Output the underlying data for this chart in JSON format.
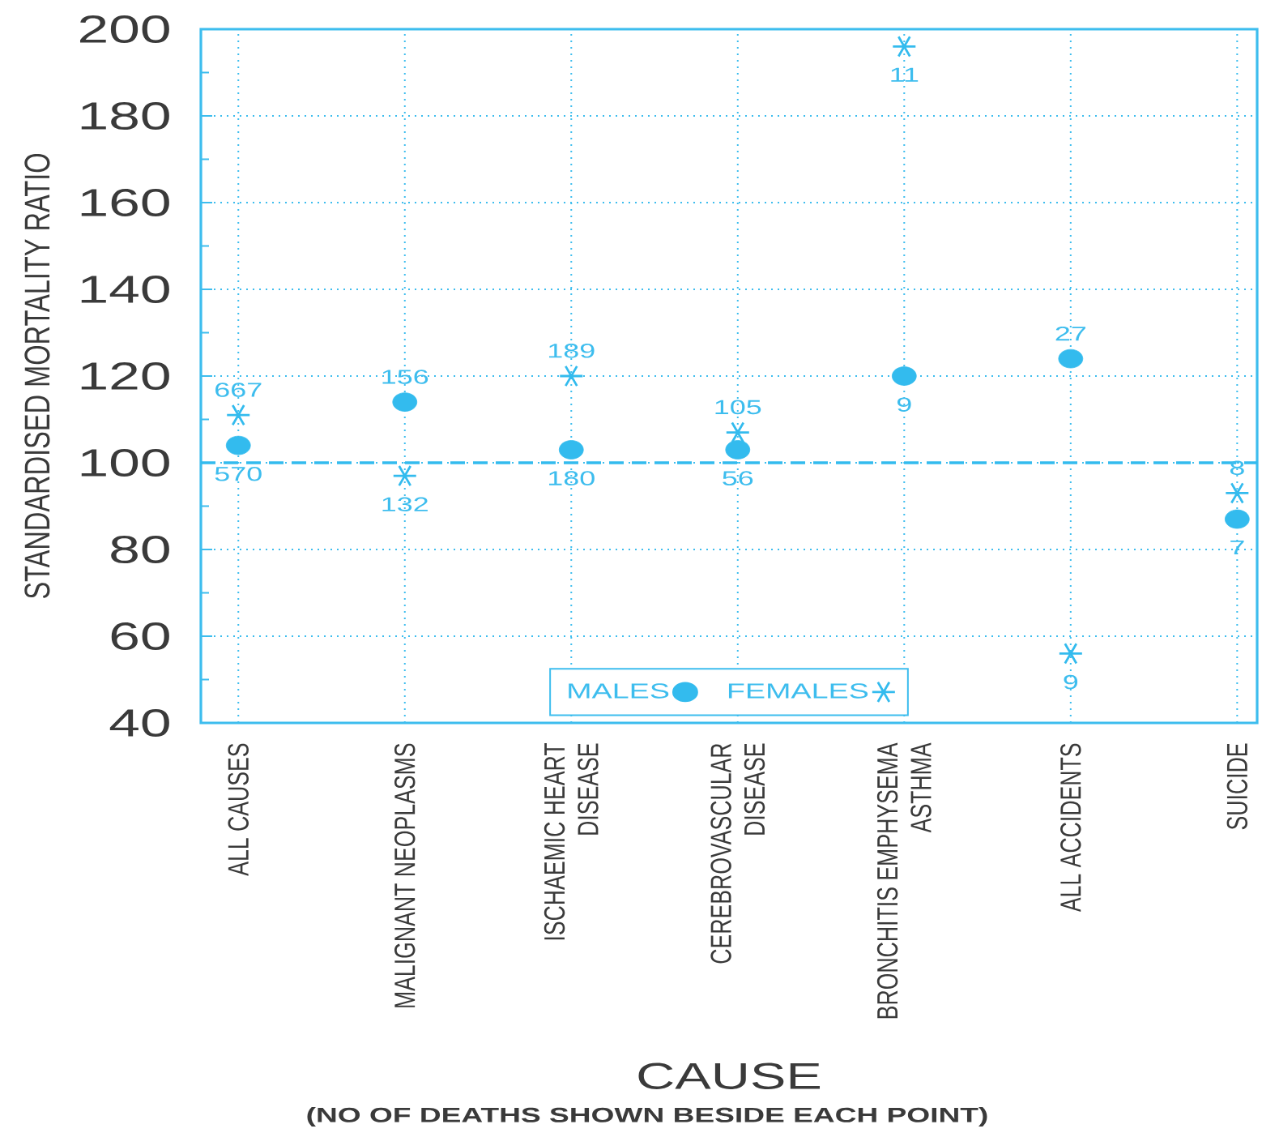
{
  "chart_data": {
    "type": "scatter",
    "categories": [
      "ALL CAUSES",
      "MALIGNANT NEOPLASMS",
      "ISCHAEMIC HEART DISEASE",
      "CEREBROVASCULAR DISEASE",
      "BRONCHITIS EMPHYSEMA ASTHMA",
      "ALL ACCIDENTS",
      "SUICIDE"
    ],
    "series": [
      {
        "name": "MALES",
        "color": "#33bbee",
        "marker": "circle",
        "values": [
          104,
          114,
          103,
          103,
          120,
          124,
          87
        ]
      },
      {
        "name": "FEMALES",
        "color": "#33bbee",
        "marker": "cross",
        "values": [
          111,
          97,
          120,
          107,
          196,
          56,
          93
        ]
      }
    ],
    "xlabel": "CAUSE",
    "ylabel": "STANDARDISED MORTALITY RATIO",
    "annotations": [
      "(NO OF DEATHS SHOWN BESIDE EACH POINT)",
      {
        "text": "570",
        "x": "ALL CAUSES",
        "y": 104
      },
      {
        "text": "156",
        "x": "MALIGNANT NEOPLASMS",
        "y": 114
      },
      {
        "text": "180",
        "x": "ISCHAEMIC HEART DISEASE",
        "y": 103
      },
      {
        "text": "56",
        "x": "CEREBROVASCULAR DISEASE",
        "y": 103
      },
      {
        "text": "9",
        "x": "BRONCHITIS EMPHYSEMA ASTHMA",
        "y": 120
      },
      {
        "text": "27",
        "x": "ALL ACCIDENTS",
        "y": 124
      },
      {
        "text": "7",
        "x": "SUICIDE",
        "y": 87
      },
      {
        "text": "667",
        "x": "ALL CAUSES",
        "y": 111
      },
      {
        "text": "132",
        "x": "MALIGNANT NEOPLASMS",
        "y": 97
      },
      {
        "text": "189",
        "x": "ISCHAEMIC HEART DISEASE",
        "y": 120
      },
      {
        "text": "105",
        "x": "CEREBROVASCULAR DISEASE",
        "y": 107
      },
      {
        "text": "11",
        "x": "BRONCHITIS EMPHYSEMA ASTHMA",
        "y": 196
      },
      {
        "text": "9",
        "x": "ALL ACCIDENTS",
        "y": 56
      },
      {
        "text": "8",
        "x": "SUICIDE",
        "y": 93
      }
    ],
    "ylim": [
      40,
      200
    ],
    "yticks": [
      40,
      60,
      80,
      100,
      120,
      140,
      160,
      180,
      200
    ],
    "grid": true,
    "legend": "bottom",
    "ref_lines": [
      {
        "axis": "y",
        "value": 100,
        "line_style": "dashed",
        "color": "#33bbee"
      }
    ]
  }
}
